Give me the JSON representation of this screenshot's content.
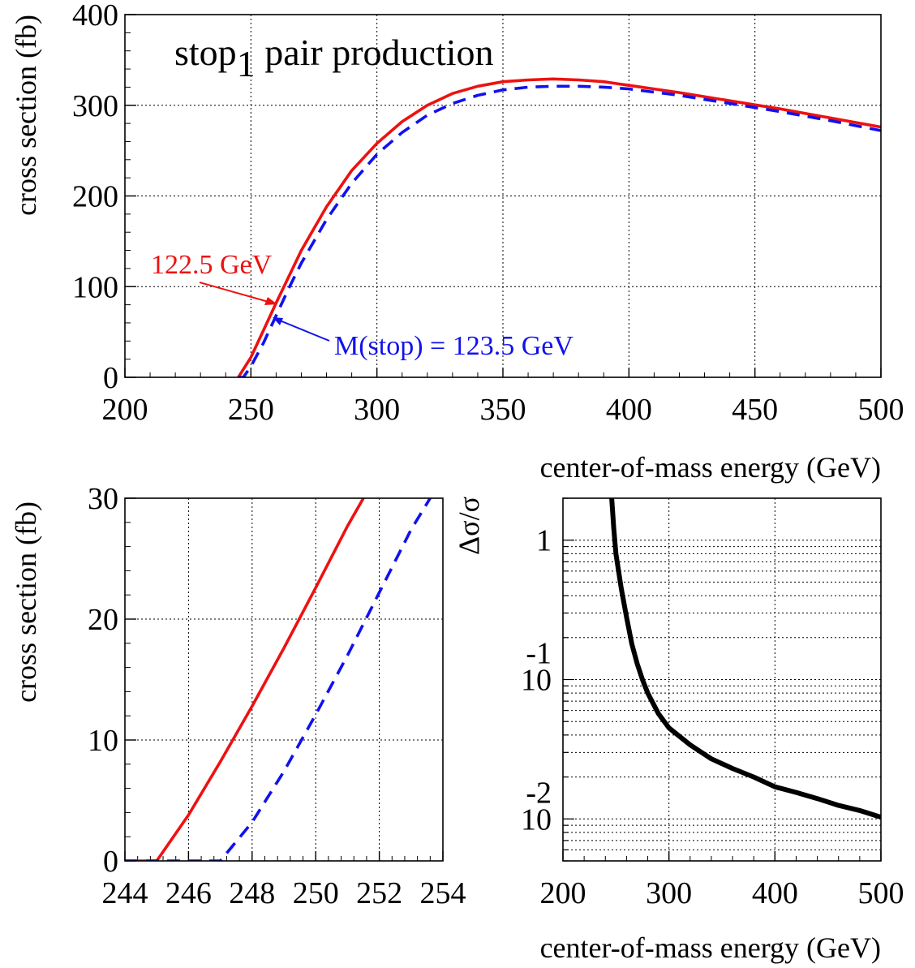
{
  "colors": {
    "red": "#ee1111",
    "blue": "#1111ee",
    "black": "#000000",
    "grid": "#000000"
  },
  "chart_data": [
    {
      "type": "line",
      "title": "stop",
      "title_sub": "1",
      "title_rest": " pair production",
      "xlabel": "center-of-mass energy (GeV)",
      "ylabel": "cross section (fb)",
      "xlim": [
        200,
        500
      ],
      "ylim": [
        0,
        400
      ],
      "xticks": [
        "200",
        "250",
        "300",
        "350",
        "400",
        "450",
        "500"
      ],
      "yticks": [
        "0",
        "100",
        "200",
        "300",
        "400"
      ],
      "grid": true,
      "annotations": {
        "red_label": "122.5 GeV",
        "blue_label": "M(stop) = 123.5 GeV"
      },
      "series": [
        {
          "color": "red",
          "style": "solid",
          "x": [
            245,
            250,
            255,
            260,
            270,
            280,
            290,
            300,
            310,
            320,
            330,
            340,
            350,
            360,
            370,
            380,
            390,
            400,
            420,
            440,
            460,
            480,
            500
          ],
          "y": [
            0,
            22,
            52,
            82,
            140,
            188,
            228,
            258,
            282,
            300,
            313,
            321,
            326,
            328,
            329,
            328,
            326,
            322,
            314,
            305,
            296,
            286,
            276
          ]
        },
        {
          "color": "blue",
          "style": "dashed",
          "x": [
            245,
            247,
            250,
            255,
            260,
            265,
            270,
            280,
            290,
            300,
            310,
            320,
            330,
            340,
            350,
            360,
            370,
            380,
            390,
            400,
            420,
            440,
            460,
            480,
            500
          ],
          "y": [
            0,
            0,
            12,
            38,
            68,
            98,
            126,
            174,
            214,
            246,
            270,
            289,
            302,
            311,
            317,
            320,
            321,
            321,
            320,
            318,
            311,
            302,
            293,
            283,
            272
          ]
        }
      ]
    },
    {
      "type": "line",
      "title": "",
      "xlabel": "",
      "ylabel": "cross section (fb)",
      "xlim": [
        244,
        254
      ],
      "ylim": [
        0,
        30
      ],
      "xticks": [
        "244",
        "246",
        "248",
        "250",
        "252",
        "254"
      ],
      "yticks": [
        "0",
        "10",
        "20",
        "30"
      ],
      "grid": true,
      "series": [
        {
          "color": "red",
          "style": "solid",
          "x": [
            244,
            245,
            246,
            247,
            248,
            249,
            250,
            251,
            251.5
          ],
          "y": [
            0,
            0,
            3.8,
            8.2,
            12.8,
            17.6,
            22.6,
            27.7,
            30
          ]
        },
        {
          "color": "blue",
          "style": "dashed",
          "x": [
            244,
            247,
            248,
            249,
            250,
            251,
            252,
            253,
            253.6
          ],
          "y": [
            0,
            0,
            3.2,
            7.4,
            12.1,
            17.0,
            22.2,
            27.4,
            30
          ]
        }
      ]
    },
    {
      "type": "line",
      "title": "",
      "xlabel": "center-of-mass energy (GeV)",
      "ylabel": "Δσ/σ",
      "xlim": [
        200,
        500
      ],
      "ylim": [
        0.005,
        2
      ],
      "yscale": "log",
      "xticks": [
        "200",
        "300",
        "400",
        "500"
      ],
      "yticks": [
        {
          "base": "1",
          "exp": ""
        },
        {
          "base": "10",
          "exp": "-1"
        },
        {
          "base": "10",
          "exp": "-2"
        }
      ],
      "grid": true,
      "series": [
        {
          "color": "black",
          "style": "solid",
          "x": [
            246,
            248,
            250,
            255,
            260,
            265,
            270,
            275,
            280,
            290,
            300,
            320,
            340,
            360,
            380,
            400,
            420,
            440,
            460,
            480,
            500
          ],
          "y": [
            2,
            1.2,
            0.8,
            0.45,
            0.28,
            0.18,
            0.13,
            0.1,
            0.08,
            0.057,
            0.045,
            0.034,
            0.027,
            0.023,
            0.02,
            0.017,
            0.0155,
            0.014,
            0.0125,
            0.0115,
            0.0103
          ]
        }
      ]
    }
  ]
}
